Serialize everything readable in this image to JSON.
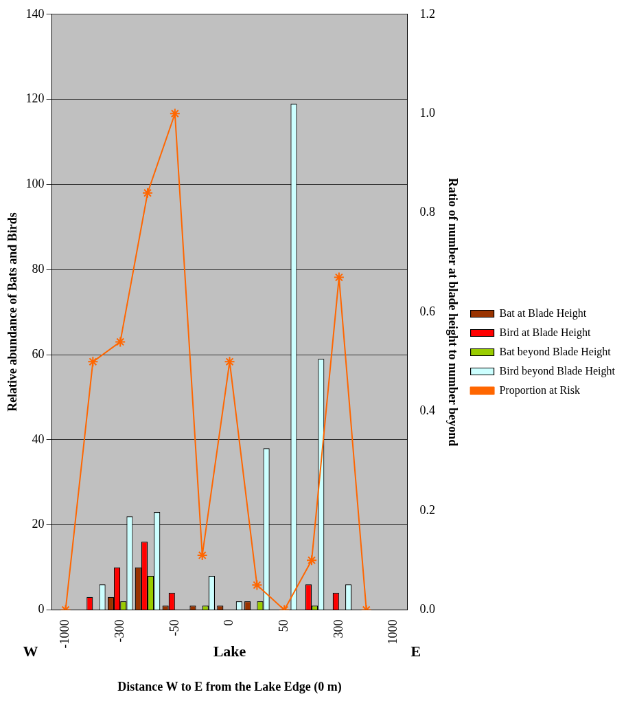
{
  "chart_data": {
    "type": "bar",
    "xlabel": "Distance W to E from the Lake Edge (0 m)",
    "ylabel": "Relative abundance of Bats and Birds",
    "y2label": "Ratio of number at blade height to number beyond",
    "categories": [
      "-1000",
      null,
      "-300",
      null,
      "-50",
      null,
      "0",
      null,
      "50",
      null,
      "300",
      null,
      "1000"
    ],
    "series": [
      {
        "name": "Bat at Blade Height",
        "color": "#993300",
        "values": [
          0,
          0,
          3,
          10,
          1,
          1,
          1,
          2,
          0,
          0,
          0,
          0,
          0
        ]
      },
      {
        "name": "Bird at Blade Height",
        "color": "#ff0000",
        "values": [
          0,
          3,
          10,
          16,
          4,
          0,
          0,
          0,
          0,
          6,
          4,
          0,
          0
        ]
      },
      {
        "name": "Bat beyond Blade Height",
        "color": "#99cc00",
        "values": [
          0,
          0,
          2,
          8,
          0,
          1,
          0,
          2,
          0,
          1,
          0,
          0,
          0
        ]
      },
      {
        "name": "Bird beyond Blade Height",
        "color": "#ccffff",
        "values": [
          0,
          6,
          22,
          23,
          0,
          8,
          2,
          38,
          119,
          59,
          6,
          0,
          0
        ]
      },
      {
        "name": "Proportion at Risk",
        "type": "line",
        "axis": "y2",
        "color": "#ff6600",
        "marker": "cross",
        "values": [
          0,
          0.5,
          0.54,
          0.84,
          1.0,
          0.11,
          0.5,
          0.05,
          0,
          0.1,
          0.67,
          0,
          null
        ]
      }
    ],
    "ylim": [
      0,
      140
    ],
    "yticks": [
      0,
      20,
      40,
      60,
      80,
      100,
      120,
      140
    ],
    "y2lim": [
      0,
      1.2
    ],
    "y2ticks": [
      {
        "value": 0,
        "label": "0.0"
      },
      {
        "value": 0.2,
        "label": "0.2"
      },
      {
        "value": 0.4,
        "label": "0.4"
      },
      {
        "value": 0.6,
        "label": "0.6"
      },
      {
        "value": 0.8,
        "label": "0.8"
      },
      {
        "value": 1.0,
        "label": "1.0"
      },
      {
        "value": 1.2,
        "label": "1.2"
      }
    ],
    "annotations": [
      "W",
      "Lake",
      "E"
    ],
    "grid": "y",
    "legend": "right"
  }
}
